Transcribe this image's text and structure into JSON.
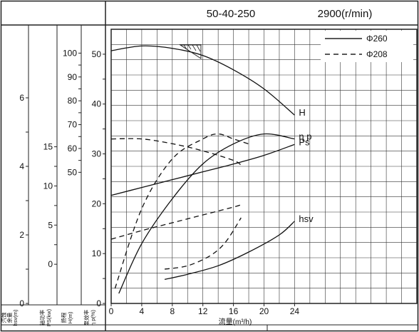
{
  "chart_data": {
    "type": "line",
    "header": {
      "model": "50-40-250",
      "speed": "2900(r/min)"
    },
    "legend": [
      {
        "label": "Φ260",
        "style": "solid"
      },
      {
        "label": "Φ208",
        "style": "dashed"
      }
    ],
    "x_axis": {
      "label": "流量(m³/h)",
      "ticks": [
        "0",
        "4",
        "8",
        "12",
        "16",
        "20",
        "24"
      ],
      "range": [
        0,
        40
      ]
    },
    "y_axes": [
      {
        "key": "hsv",
        "label_lines": [
          "汽蚀",
          "余量",
          "hsv(m)"
        ],
        "ticks": [
          "0",
          "2",
          "4",
          "6"
        ],
        "range": [
          0,
          8
        ]
      },
      {
        "key": "ps",
        "label_lines": [
          "轴功率",
          "PS(kw)"
        ],
        "ticks": [
          "0",
          "5",
          "10",
          "15"
        ],
        "range": [
          -5,
          30
        ]
      },
      {
        "key": "head",
        "label_lines": [
          "扬程",
          "H(m)"
        ],
        "ticks": [
          "50",
          "60",
          "70",
          "80",
          "90",
          "100"
        ],
        "range": [
          -5,
          110
        ]
      },
      {
        "key": "eff",
        "label_lines": [
          "泵效率",
          "η p(%)"
        ],
        "ticks": [
          "0",
          "10",
          "20",
          "30",
          "40",
          "50"
        ],
        "range": [
          0,
          55
        ]
      }
    ],
    "series": [
      {
        "curve": "H",
        "legend": "Φ260",
        "axis": "head",
        "label": "H",
        "x": [
          0,
          4,
          8,
          12,
          16,
          20,
          24
        ],
        "y": [
          101,
          103,
          102,
          99,
          93,
          85,
          74
        ]
      },
      {
        "curve": "H",
        "legend": "Φ208",
        "axis": "head",
        "x": [
          0,
          4,
          8,
          12,
          16,
          17
        ],
        "y": [
          64,
          64,
          62,
          59,
          55,
          53
        ]
      },
      {
        "curve": "Ps",
        "legend": "Φ260",
        "axis": "ps",
        "label": "Ps",
        "x": [
          0,
          4,
          8,
          12,
          16,
          20,
          24
        ],
        "y": [
          8.8,
          9.8,
          10.8,
          11.8,
          12.8,
          13.9,
          15.3
        ]
      },
      {
        "curve": "Ps",
        "legend": "Φ208",
        "axis": "ps",
        "x": [
          0,
          4,
          8,
          12,
          16,
          17
        ],
        "y": [
          3.2,
          4.3,
          5.3,
          6.3,
          7.3,
          7.6
        ]
      },
      {
        "curve": "ηp",
        "legend": "Φ260",
        "axis": "eff",
        "label": "η p",
        "x": [
          1,
          4,
          8,
          12,
          16,
          20,
          24
        ],
        "y": [
          2,
          12,
          21,
          28,
          32,
          34,
          33
        ]
      },
      {
        "curve": "ηp",
        "legend": "Φ208",
        "axis": "eff",
        "x": [
          0.5,
          4,
          8,
          12,
          14,
          16,
          18
        ],
        "y": [
          3,
          19,
          29,
          33,
          34,
          33,
          32
        ]
      },
      {
        "curve": "hsv",
        "legend": "Φ260",
        "axis": "hsv",
        "label": "hsv",
        "x": [
          7,
          10,
          14,
          18,
          22,
          24
        ],
        "y": [
          0.7,
          0.85,
          1.1,
          1.5,
          2.0,
          2.4
        ]
      },
      {
        "curve": "hsv",
        "legend": "Φ208",
        "axis": "hsv",
        "x": [
          7,
          10,
          13,
          15,
          17
        ],
        "y": [
          1.0,
          1.1,
          1.4,
          1.8,
          2.5
        ]
      }
    ],
    "grid": true
  }
}
